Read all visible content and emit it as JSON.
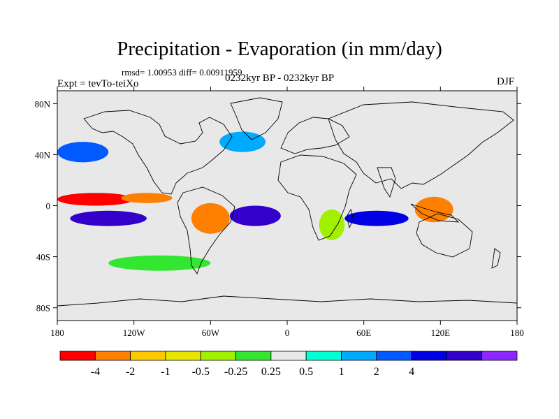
{
  "title": "Precipitation - Evaporation (in mm/day)",
  "stats": "rmsd= 1.00953 diff= 0.00911959",
  "experiment": "Expt = tevTo-teiXo",
  "period": "0232kyr BP - 0232kyr BP",
  "season": "DJF",
  "colors": {
    "background": "#e8e8e8",
    "coast": "#000000",
    "levels": [
      "#ff0000",
      "#ff7f00",
      "#ffc800",
      "#e6e600",
      "#a0f000",
      "#32e632",
      "#e8e8e8",
      "#00ffd2",
      "#00aaff",
      "#005aff",
      "#0000e6",
      "#3200c8",
      "#8c28ff"
    ]
  },
  "map": {
    "projection": "cylindrical equidistant",
    "lon_range": [
      -180,
      180
    ],
    "lat_range": [
      -90,
      90
    ],
    "y_ticks": [
      {
        "value": 80,
        "label": "80N"
      },
      {
        "value": 40,
        "label": "40N"
      },
      {
        "value": 0,
        "label": "0"
      },
      {
        "value": -40,
        "label": "40S"
      },
      {
        "value": -80,
        "label": "80S"
      }
    ],
    "x_ticks": [
      {
        "value": -180,
        "label": "180"
      },
      {
        "value": -120,
        "label": "120W"
      },
      {
        "value": -60,
        "label": "60W"
      },
      {
        "value": 0,
        "label": "0"
      },
      {
        "value": 60,
        "label": "60E"
      },
      {
        "value": 120,
        "label": "120E"
      },
      {
        "value": 180,
        "label": "180"
      }
    ]
  },
  "colorbar": {
    "labels": [
      "-4",
      "-2",
      "-1",
      "-0.5",
      "-0.25",
      "0.25",
      "0.5",
      "1",
      "2",
      "4"
    ]
  },
  "field_regions": [
    {
      "name": "itcz-pacific",
      "cx": -150,
      "cy": 5,
      "rx": 30,
      "ry": 5,
      "level": 0
    },
    {
      "name": "itcz-pacific-b",
      "cx": -110,
      "cy": 6,
      "rx": 20,
      "ry": 4,
      "level": 1
    },
    {
      "name": "south-pacific-dry",
      "cx": -140,
      "cy": -10,
      "rx": 30,
      "ry": 6,
      "level": 11
    },
    {
      "name": "amazon",
      "cx": -60,
      "cy": -10,
      "rx": 15,
      "ry": 12,
      "level": 1
    },
    {
      "name": "south-atlantic-dry",
      "cx": -25,
      "cy": -8,
      "rx": 20,
      "ry": 8,
      "level": 11
    },
    {
      "name": "indian-ocean",
      "cx": 70,
      "cy": -10,
      "rx": 25,
      "ry": 6,
      "level": 10
    },
    {
      "name": "maritime-continent",
      "cx": 115,
      "cy": -3,
      "rx": 15,
      "ry": 10,
      "level": 1
    },
    {
      "name": "north-pacific-storm",
      "cx": -160,
      "cy": 42,
      "rx": 20,
      "ry": 8,
      "level": 9
    },
    {
      "name": "north-atlantic-storm",
      "cx": -35,
      "cy": 50,
      "rx": 18,
      "ry": 8,
      "level": 8
    },
    {
      "name": "southern-ocean",
      "cx": -100,
      "cy": -45,
      "rx": 40,
      "ry": 6,
      "level": 5
    },
    {
      "name": "africa-east",
      "cx": 35,
      "cy": -15,
      "rx": 10,
      "ry": 12,
      "level": 4
    }
  ]
}
